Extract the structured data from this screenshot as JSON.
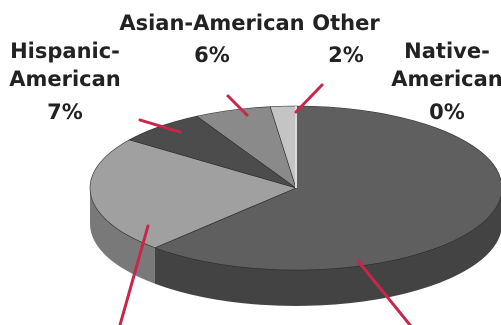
{
  "chart_data": {
    "type": "pie",
    "title": "",
    "style": "3d",
    "slices": [
      {
        "name": "",
        "value": 62,
        "label": ""
      },
      {
        "name": "",
        "value": 23,
        "label": ""
      },
      {
        "name": "Hispanic-American",
        "value": 7,
        "label": "7%"
      },
      {
        "name": "Asian-American",
        "value": 6,
        "label": "6%"
      },
      {
        "name": "Other",
        "value": 2,
        "label": "2%"
      },
      {
        "name": "Native-American",
        "value": 0,
        "label": "0%"
      }
    ],
    "label_lines": [
      "Hispanic-",
      "American",
      "Asian-American",
      "Other",
      "Native-",
      "American"
    ],
    "colors": {
      "top": [
        "#5f5f5f",
        "#a0a0a0",
        "#4c4c4c",
        "#8a8a8a",
        "#c4c4c4",
        "#dcdcdc"
      ],
      "side": [
        "#434343",
        "#797979",
        "#363636",
        "#666666",
        "#9a9a9a",
        "#b0b0b0"
      ],
      "leader": "#c8264a"
    }
  }
}
